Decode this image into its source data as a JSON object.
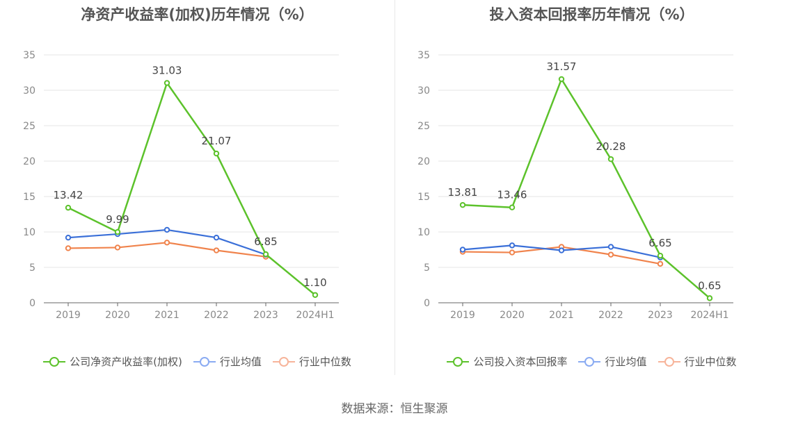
{
  "colors": {
    "company": "#5cc22b",
    "industry_avg": "#3a6fd8",
    "industry_median": "#f0834c",
    "legend_avg": "#8aabf2",
    "legend_median": "#f7b49a"
  },
  "source": "数据来源：恒生聚源",
  "chart_data": [
    {
      "type": "line",
      "title": "净资产收益率(加权)历年情况（%）",
      "categories": [
        "2019",
        "2020",
        "2021",
        "2022",
        "2023",
        "2024H1"
      ],
      "ylim": [
        0,
        35
      ],
      "yticks": [
        "0",
        "5",
        "10",
        "15",
        "20",
        "25",
        "30",
        "35"
      ],
      "grid": true,
      "legend_position": "bottom",
      "series": [
        {
          "name": "公司净资产收益率(加权)",
          "values": [
            13.42,
            9.99,
            31.03,
            21.07,
            6.85,
            1.1
          ],
          "labels": [
            "13.42",
            "9.99",
            "31.03",
            "21.07",
            "6.85",
            "1.10"
          ]
        },
        {
          "name": "行业均值",
          "values": [
            9.2,
            9.7,
            10.3,
            9.2,
            6.8,
            null
          ]
        },
        {
          "name": "行业中位数",
          "values": [
            7.7,
            7.8,
            8.5,
            7.4,
            6.5,
            null
          ]
        }
      ]
    },
    {
      "type": "line",
      "title": "投入资本回报率历年情况（%）",
      "categories": [
        "2019",
        "2020",
        "2021",
        "2022",
        "2023",
        "2024H1"
      ],
      "ylim": [
        0,
        35
      ],
      "yticks": [
        "0",
        "5",
        "10",
        "15",
        "20",
        "25",
        "30",
        "35"
      ],
      "grid": true,
      "legend_position": "bottom",
      "series": [
        {
          "name": "公司投入资本回报率",
          "values": [
            13.81,
            13.46,
            31.57,
            20.28,
            6.65,
            0.65
          ],
          "labels": [
            "13.81",
            "13.46",
            "31.57",
            "20.28",
            "6.65",
            "0.65"
          ]
        },
        {
          "name": "行业均值",
          "values": [
            7.5,
            8.1,
            7.4,
            7.9,
            6.4,
            null
          ]
        },
        {
          "name": "行业中位数",
          "values": [
            7.2,
            7.1,
            7.9,
            6.8,
            5.5,
            null
          ]
        }
      ]
    }
  ]
}
